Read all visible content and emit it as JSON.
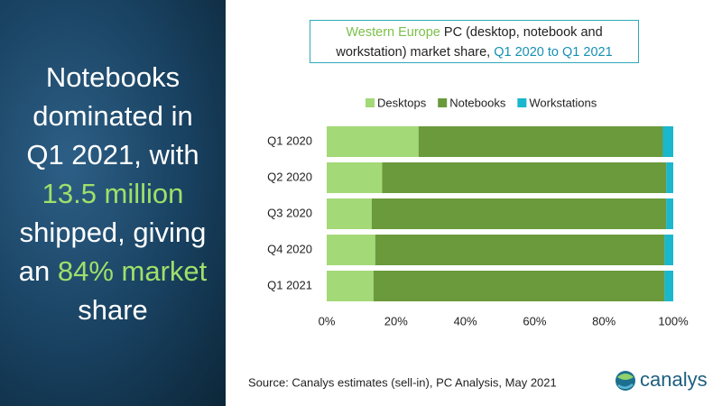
{
  "headline": [
    [
      "Notebooks"
    ],
    [
      "dominated in"
    ],
    [
      "Q1 2021, with"
    ],
    [
      "13.5 million"
    ],
    [
      "shipped, giving"
    ],
    [
      "an ",
      "84% market"
    ],
    [
      "share"
    ]
  ],
  "chart_data": {
    "type": "stacked_barh",
    "title": [
      "Western Europe",
      " PC (desktop, notebook and workstation) market share, ",
      "Q1 2020 to Q1 2021"
    ],
    "categories": [
      "Q1 2020",
      "Q2 2020",
      "Q3 2020",
      "Q4 2020",
      "Q1 2021"
    ],
    "series": [
      {
        "name": "Desktops",
        "color": "#a3d977",
        "values": [
          26.5,
          16,
          13,
          14,
          13.5
        ]
      },
      {
        "name": "Notebooks",
        "color": "#6a9a3c",
        "values": [
          70.5,
          82,
          85,
          83.5,
          84
        ]
      },
      {
        "name": "Workstations",
        "color": "#1bb7cc",
        "values": [
          3,
          2,
          2,
          2.5,
          2.5
        ]
      }
    ],
    "xlim": [
      0,
      100
    ],
    "xticks": [
      {
        "value": 0,
        "label": "0%"
      },
      {
        "value": 20,
        "label": "20%"
      },
      {
        "value": 40,
        "label": "40%"
      },
      {
        "value": 60,
        "label": "60%"
      },
      {
        "value": 80,
        "label": "80%"
      },
      {
        "value": 100,
        "label": "100%"
      }
    ],
    "legend": "top"
  },
  "source": "Source: Canalys estimates (sell-in), PC Analysis, May 2021",
  "logo": "canalys"
}
